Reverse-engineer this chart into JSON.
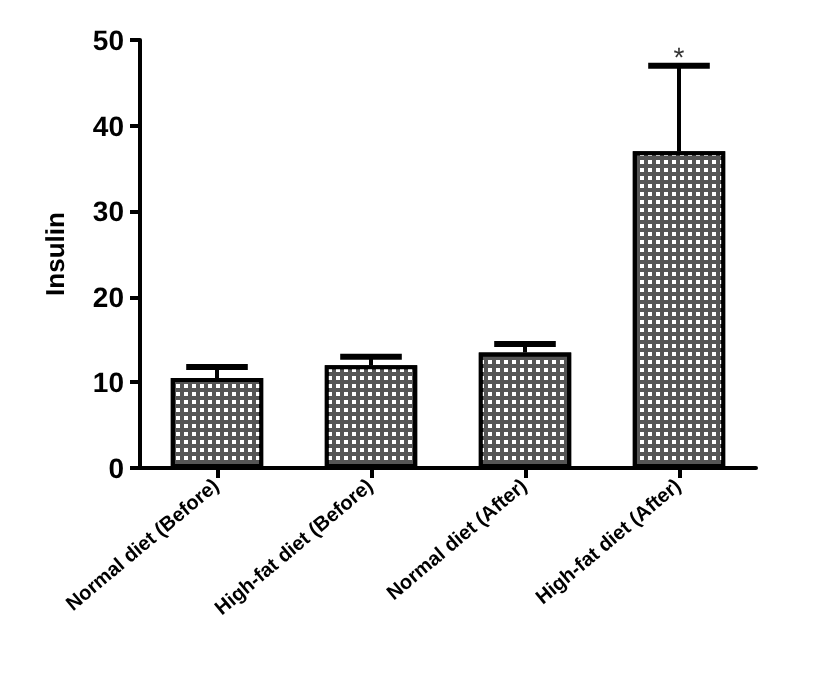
{
  "chart_data": {
    "type": "bar",
    "ylabel": "Insulin",
    "categories": [
      "Normal diet (Before)",
      "High-fat diet (Before)",
      "Normal diet (After)",
      "High-fat diet (After)"
    ],
    "values": [
      10.5,
      12,
      13.5,
      37
    ],
    "errors": [
      1.3,
      1,
      1,
      10
    ],
    "color": "#555555",
    "ylim": [
      0,
      50
    ],
    "yticks": [
      0,
      10,
      20,
      30,
      40,
      50
    ],
    "grid": false,
    "annotations": [
      {
        "text": "*",
        "x": "High-fat diet (After)",
        "y": 48
      }
    ]
  }
}
